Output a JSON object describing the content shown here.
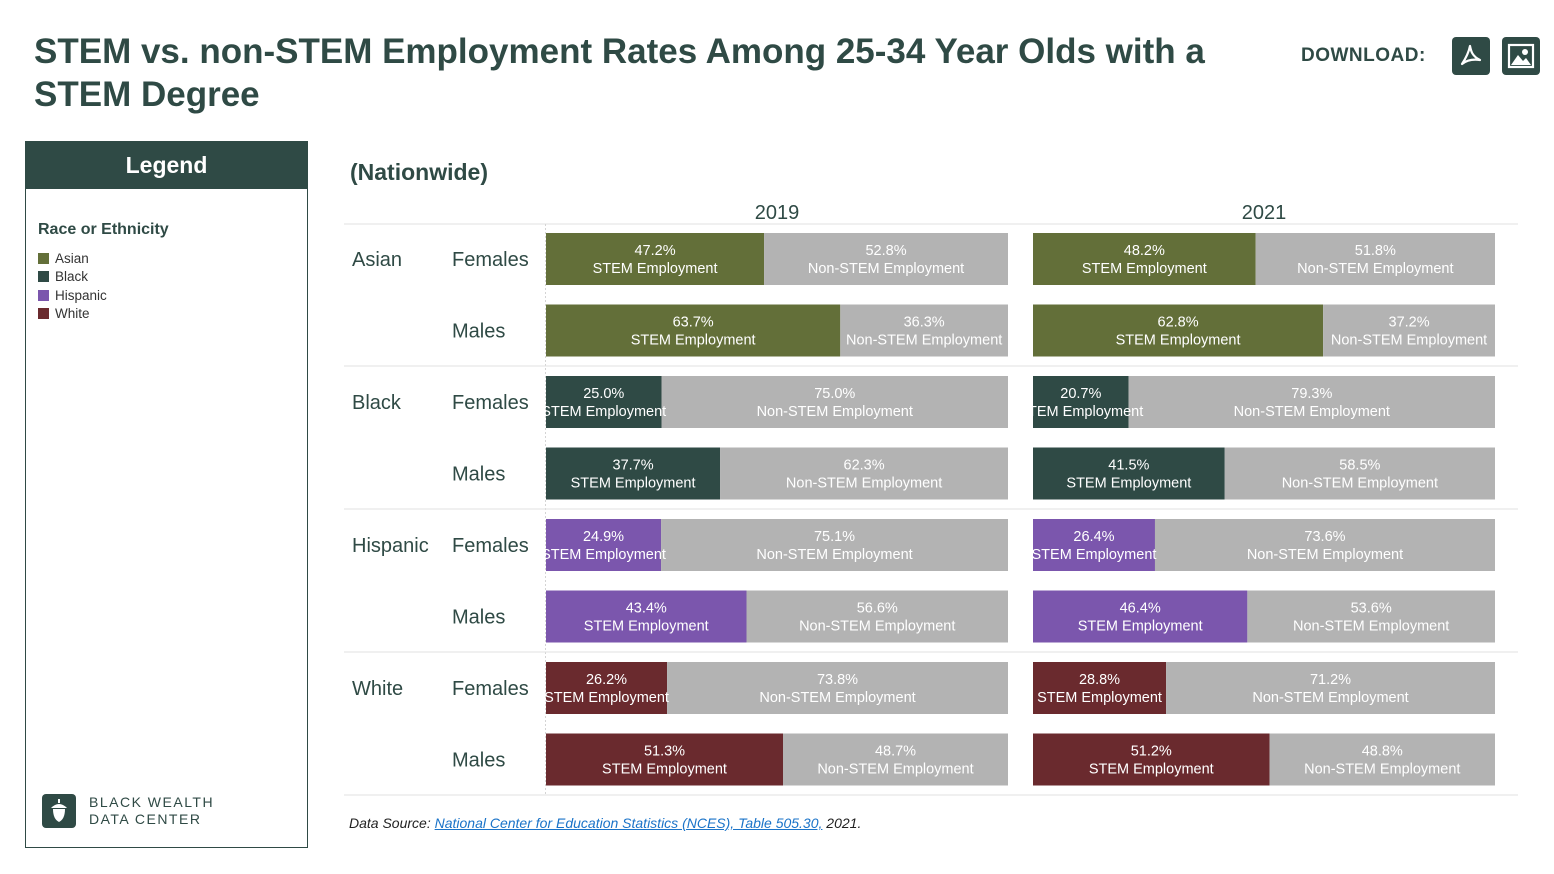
{
  "header": {
    "title": "STEM vs. non-STEM Employment Rates Among 25-34 Year Olds with a STEM Degree",
    "download_label": "DOWNLOAD:",
    "download_icons": [
      "pdf-icon",
      "image-icon"
    ]
  },
  "legend": {
    "heading": "Legend",
    "subtitle": "Race or Ethnicity",
    "items": [
      {
        "label": "Asian",
        "color": "#636f39"
      },
      {
        "label": "Black",
        "color": "#2f4a45"
      },
      {
        "label": "Hispanic",
        "color": "#7b56ad"
      },
      {
        "label": "White",
        "color": "#6a2a2e"
      }
    ],
    "brand_line1": "BLACK WEALTH",
    "brand_line2": "DATA CENTER"
  },
  "chart_subtitle": "(Nationwide)",
  "source": {
    "prefix": "Data Source: ",
    "link_text": "National Center for Education Statistics (NCES), Table 505.30,",
    "suffix": " 2021."
  },
  "chart_data": {
    "type": "bar",
    "stacked": true,
    "orientation": "horizontal",
    "panels": [
      "2019",
      "2021"
    ],
    "segment_labels": [
      "STEM  Employment",
      "Non-STEM  Employment"
    ],
    "non_stem_color": "#b3b3b3",
    "xlim": [
      0,
      100
    ],
    "unit": "%",
    "groups": [
      {
        "name": "Asian",
        "color": "#636f39",
        "rows": [
          {
            "sex": "Females",
            "values": {
              "2019": [
                47.2,
                52.8
              ],
              "2021": [
                48.2,
                51.8
              ]
            }
          },
          {
            "sex": "Males",
            "values": {
              "2019": [
                63.7,
                36.3
              ],
              "2021": [
                62.8,
                37.2
              ]
            }
          }
        ]
      },
      {
        "name": "Black",
        "color": "#2f4a45",
        "rows": [
          {
            "sex": "Females",
            "values": {
              "2019": [
                25.0,
                75.0
              ],
              "2021": [
                20.7,
                79.3
              ]
            }
          },
          {
            "sex": "Males",
            "values": {
              "2019": [
                37.7,
                62.3
              ],
              "2021": [
                41.5,
                58.5
              ]
            }
          }
        ]
      },
      {
        "name": "Hispanic",
        "color": "#7b56ad",
        "rows": [
          {
            "sex": "Females",
            "values": {
              "2019": [
                24.9,
                75.1
              ],
              "2021": [
                26.4,
                73.6
              ]
            }
          },
          {
            "sex": "Males",
            "values": {
              "2019": [
                43.4,
                56.6
              ],
              "2021": [
                46.4,
                53.6
              ]
            }
          }
        ]
      },
      {
        "name": "White",
        "color": "#6a2a2e",
        "rows": [
          {
            "sex": "Females",
            "values": {
              "2019": [
                26.2,
                73.8
              ],
              "2021": [
                28.8,
                71.2
              ]
            }
          },
          {
            "sex": "Males",
            "values": {
              "2019": [
                51.3,
                48.7
              ],
              "2021": [
                51.2,
                48.8
              ]
            }
          }
        ]
      }
    ]
  }
}
